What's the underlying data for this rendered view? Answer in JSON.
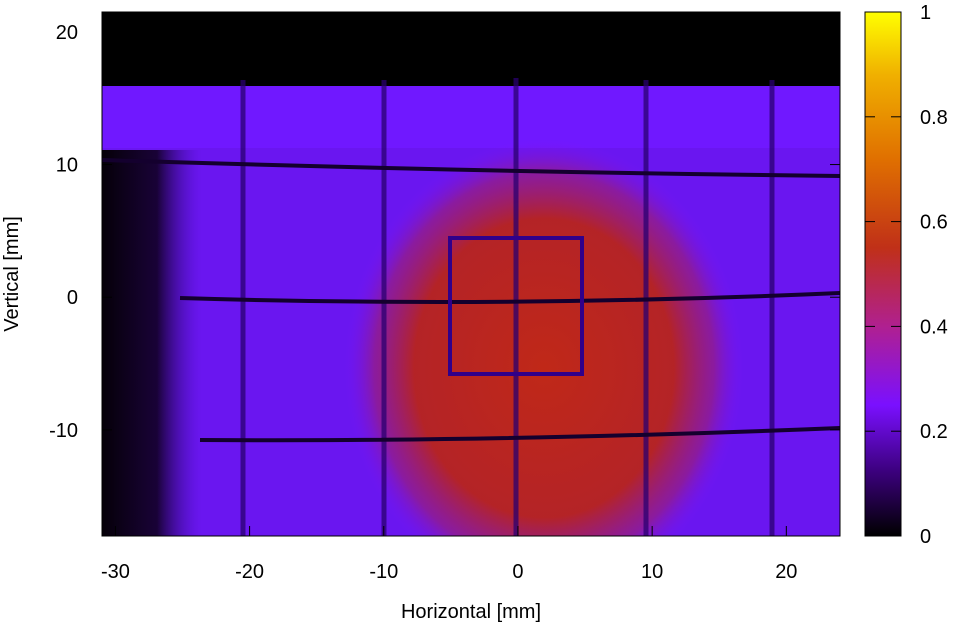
{
  "chart_data": {
    "type": "heatmap",
    "title": "",
    "xlabel": "Horizontal [mm]",
    "ylabel": "Vertical [mm]",
    "xlim": [
      -31,
      24
    ],
    "ylim": [
      -18,
      21.5
    ],
    "x_ticks": [
      -30,
      -20,
      -10,
      0,
      10,
      20
    ],
    "y_ticks": [
      -10,
      0,
      10,
      20
    ],
    "colorbar": {
      "min": 0,
      "max": 1,
      "ticks": [
        0,
        0.2,
        0.4,
        0.6,
        0.8,
        1
      ],
      "palette": [
        "#000000",
        "#3a007a",
        "#7a10ff",
        "#b02090",
        "#c03018",
        "#e07000",
        "#f0b000",
        "#ffff00"
      ]
    },
    "grid": false,
    "features": {
      "top_dark_band_above_mm": 16.5,
      "beam_band_top_mm": [
        10.5,
        16.5
      ],
      "left_dark_edge_mm": -25,
      "vertical_grid_lines_mm": [
        -20,
        -10,
        0,
        10,
        19
      ],
      "horizontal_grid_lines_mm": [
        9.5,
        0,
        -10.5
      ],
      "central_hot_spot_center_mm": [
        2,
        -5
      ],
      "central_hot_spot_value": 0.5,
      "square_frame_mm": {
        "x": [
          -5,
          5
        ],
        "y": [
          -5.5,
          4.5
        ]
      }
    }
  }
}
